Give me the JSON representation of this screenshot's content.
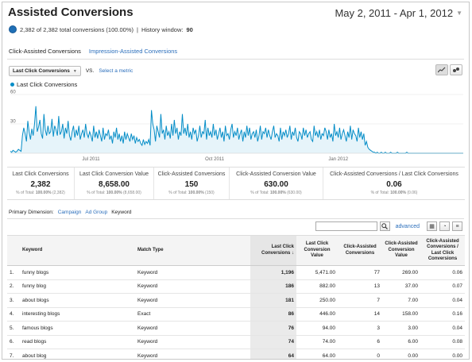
{
  "title": "Assisted Conversions",
  "date_range": "May 2, 2011 - Apr 1, 2012",
  "summary": {
    "conversions_text": "2,382 of 2,382 total conversions (100.00%)",
    "separator": "|",
    "history_label": "History window:",
    "history_value": "90"
  },
  "tabs": [
    "Click-Assisted Conversions",
    "Impression-Assisted Conversions"
  ],
  "metric_selector": {
    "selected": "Last Click Conversions",
    "vs": "VS.",
    "select_metric": "Select a metric"
  },
  "legend_label": "Last Click Conversions",
  "colors": {
    "series": "#058dc7",
    "fill": "#e6f4fa",
    "link": "#2a6ebb"
  },
  "chart_data": {
    "type": "area",
    "series": [
      {
        "name": "Last Click Conversions"
      }
    ],
    "ylim": [
      0,
      60
    ],
    "yticks": [
      "60",
      "30"
    ],
    "xticks": [
      "Jul 2011",
      "Oct 2011",
      "Jan 2012"
    ],
    "note": "Daily values May 2, 2011 - Apr 1, 2012; peaks ~48 early, mostly 10-30, drops to ~0 from late Jan 2012",
    "values": [
      2,
      1,
      3,
      2,
      1,
      2,
      4,
      3,
      2,
      18,
      26,
      20,
      12,
      33,
      22,
      14,
      25,
      18,
      30,
      48,
      22,
      27,
      34,
      20,
      15,
      40,
      24,
      18,
      28,
      20,
      22,
      35,
      17,
      28,
      24,
      18,
      38,
      19,
      22,
      30,
      15,
      26,
      20,
      33,
      18,
      13,
      22,
      28,
      16,
      24,
      18,
      28,
      14,
      20,
      24,
      16,
      30,
      20,
      16,
      22,
      18,
      12,
      28,
      16,
      22,
      15,
      24,
      18,
      12,
      26,
      14,
      20,
      18,
      24,
      14,
      18,
      10,
      22,
      16,
      26,
      14,
      20,
      12,
      18,
      10,
      22,
      14,
      20,
      16,
      12,
      20,
      14,
      18,
      10,
      16,
      12,
      14,
      10,
      8,
      14,
      9,
      12,
      10,
      14,
      8,
      44,
      30,
      24,
      12,
      28,
      22,
      16,
      40,
      20,
      24,
      14,
      28,
      18,
      22,
      15,
      30,
      18,
      34,
      20,
      26,
      14,
      22,
      18,
      40,
      20,
      26,
      18,
      30,
      16,
      22,
      14,
      26,
      20,
      24,
      12,
      18,
      28,
      16,
      22,
      20,
      34,
      14,
      26,
      18,
      22,
      16,
      30,
      18,
      24,
      14,
      20,
      26,
      16,
      22,
      12,
      28,
      18,
      20,
      14,
      24,
      30,
      16,
      22,
      18,
      26,
      14,
      20,
      24,
      12,
      22,
      16,
      28,
      18,
      26,
      14,
      20,
      22,
      16,
      24,
      12,
      18,
      28,
      14,
      22,
      20,
      26,
      16,
      24,
      18,
      14,
      22,
      28,
      16,
      20,
      18,
      12,
      26,
      14,
      22,
      18,
      24,
      16,
      20,
      28,
      14,
      22,
      18,
      26,
      16,
      12,
      22,
      20,
      14,
      26,
      18,
      24,
      16,
      20,
      22,
      14,
      12,
      28,
      18,
      22,
      16,
      24,
      14,
      20,
      18,
      26,
      22,
      14,
      24,
      16,
      20,
      12,
      30,
      18,
      22,
      16,
      26,
      14,
      20,
      24,
      18,
      12,
      22,
      16,
      28,
      14,
      24,
      20,
      18,
      12,
      26,
      16,
      22,
      14,
      20,
      8,
      12,
      6,
      4,
      3,
      2,
      1,
      1,
      0,
      1,
      0,
      0,
      1,
      0,
      0,
      1,
      0,
      0,
      0,
      1,
      0,
      0,
      0,
      0,
      1,
      0,
      0,
      0,
      0,
      0,
      0,
      1,
      0,
      0,
      0,
      0,
      0,
      0,
      0,
      0,
      0,
      0,
      0,
      0,
      0,
      0,
      0,
      0,
      0,
      0,
      0,
      0,
      0,
      0,
      0,
      0,
      0,
      0,
      0,
      0,
      0,
      0,
      0,
      0,
      0,
      0,
      0,
      0,
      0,
      0,
      0,
      0,
      0,
      0
    ]
  },
  "scorecards": [
    {
      "label": "Last Click Conversions",
      "value": "2,382",
      "sub_prefix": "% of Total:",
      "sub_bold": "100.00%",
      "sub_suffix": "(2,382)"
    },
    {
      "label": "Last Click Conversion Value",
      "value": "8,658.00",
      "sub_prefix": "% of Total:",
      "sub_bold": "100.00%",
      "sub_suffix": "(8,658.00)"
    },
    {
      "label": "Click-Assisted Conversions",
      "value": "150",
      "sub_prefix": "% of Total:",
      "sub_bold": "100.00%",
      "sub_suffix": "(150)"
    },
    {
      "label": "Click-Assisted Conversion Value",
      "value": "630.00",
      "sub_prefix": "% of Total:",
      "sub_bold": "100.00%",
      "sub_suffix": "(630.00)"
    },
    {
      "label": "Click-Assisted Conversions / Last Click Conversions",
      "value": "0.06",
      "sub_prefix": "% of Total:",
      "sub_bold": "100.00%",
      "sub_suffix": "(0.06)"
    }
  ],
  "primary_dimension": {
    "label": "Primary Dimension:",
    "options": [
      "Campaign",
      "Ad Group"
    ],
    "current": "Keyword"
  },
  "search": {
    "placeholder": "",
    "advanced": "advanced"
  },
  "table": {
    "headers": [
      "Keyword",
      "Match Type",
      "Last Click Conversions",
      "Last Click Conversion Value",
      "Click-Assisted Conversions",
      "Click-Assisted Conversion Value",
      "Click-Assisted Conversions / Last Click Conversions"
    ],
    "rows": [
      {
        "idx": "1.",
        "keyword": "funny blogs",
        "match": "Keyword",
        "lcc": "1,196",
        "lcv": "5,471.00",
        "cac": "77",
        "cav": "269.00",
        "ratio": "0.06"
      },
      {
        "idx": "2.",
        "keyword": "funny blog",
        "match": "Keyword",
        "lcc": "186",
        "lcv": "882.00",
        "cac": "13",
        "cav": "37.00",
        "ratio": "0.07"
      },
      {
        "idx": "3.",
        "keyword": "about blogs",
        "match": "Keyword",
        "lcc": "181",
        "lcv": "250.00",
        "cac": "7",
        "cav": "7.00",
        "ratio": "0.04"
      },
      {
        "idx": "4.",
        "keyword": "interesting blogs",
        "match": "Exact",
        "lcc": "86",
        "lcv": "446.00",
        "cac": "14",
        "cav": "158.00",
        "ratio": "0.16"
      },
      {
        "idx": "5.",
        "keyword": "famous blogs",
        "match": "Keyword",
        "lcc": "76",
        "lcv": "94.00",
        "cac": "3",
        "cav": "3.00",
        "ratio": "0.04"
      },
      {
        "idx": "6.",
        "keyword": "read blogs",
        "match": "Keyword",
        "lcc": "74",
        "lcv": "74.00",
        "cac": "6",
        "cav": "6.00",
        "ratio": "0.08"
      },
      {
        "idx": "7.",
        "keyword": "about blog",
        "match": "Keyword",
        "lcc": "64",
        "lcv": "64.00",
        "cac": "0",
        "cav": "0.00",
        "ratio": "0.00"
      }
    ]
  }
}
